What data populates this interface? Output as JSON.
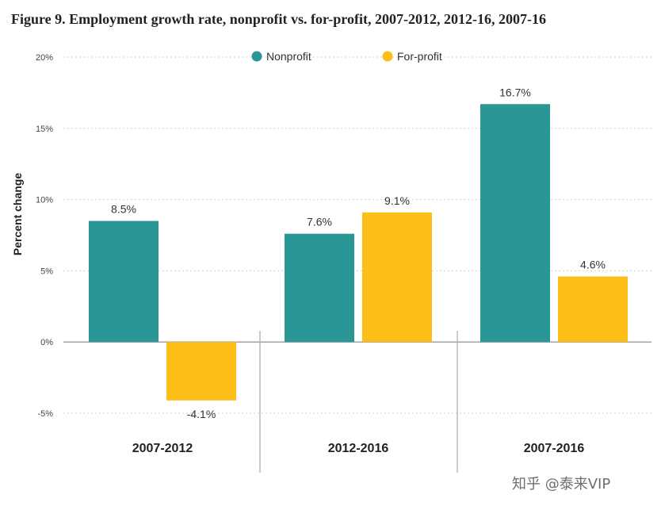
{
  "title": "Figure 9. Employment growth rate, nonprofit vs. for-profit, 2007-2012, 2012-16, 2007-16",
  "watermark": "知乎 @泰来VIP",
  "chart_data": {
    "type": "bar",
    "categories": [
      "2007-2012",
      "2012-2016",
      "2007-2016"
    ],
    "series": [
      {
        "name": "Nonprofit",
        "color": "#2A9696",
        "values": [
          8.5,
          7.6,
          16.7
        ],
        "labels": [
          "8.5%",
          "7.6%",
          "16.7%"
        ]
      },
      {
        "name": "For-profit",
        "color": "#FDBF17",
        "values": [
          -4.1,
          9.1,
          4.6
        ],
        "labels": [
          "-4.1%",
          "9.1%",
          "4.6%"
        ]
      }
    ],
    "ylabel": "Percent change",
    "ylim": [
      -5,
      20
    ],
    "yticks": [
      20,
      15,
      10,
      5,
      0,
      -5
    ],
    "ytick_labels": [
      "20%",
      "15%",
      "10%",
      "5%",
      "0%",
      "-5%"
    ],
    "grid": true,
    "legend_position": "top"
  }
}
